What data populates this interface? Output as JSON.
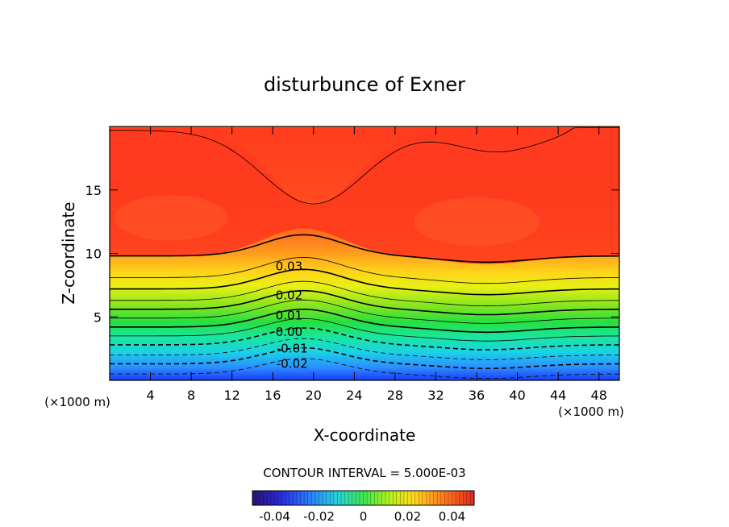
{
  "chart_data": {
    "type": "heatmap",
    "subtype": "filled-contour",
    "title": "disturbunce of Exner",
    "xlabel": "X-coordinate",
    "ylabel": "Z-coordinate",
    "x_unit_left": "(×1000 m)",
    "x_unit_right": "(×1000 m)",
    "xlim": [
      0,
      50
    ],
    "ylim": [
      0,
      20
    ],
    "x_ticks": [
      4,
      8,
      12,
      16,
      20,
      24,
      28,
      32,
      36,
      40,
      44,
      48
    ],
    "x_tick_labels": [
      "4",
      "8",
      "12",
      "16",
      "20",
      "24",
      "28",
      "32",
      "36",
      "40",
      "44",
      "48"
    ],
    "y_ticks": [
      5,
      10,
      15
    ],
    "y_tick_labels": [
      "5",
      "10",
      "15"
    ],
    "contour_interval_text": "CONTOUR INTERVAL = 5.000E-03",
    "contour_labels": [
      {
        "text": "0.03",
        "x": 17.6,
        "z": 9.0
      },
      {
        "text": "0.02",
        "x": 17.6,
        "z": 6.7
      },
      {
        "text": "0.01",
        "x": 17.6,
        "z": 5.1
      },
      {
        "text": "0.00",
        "x": 17.6,
        "z": 3.8
      },
      {
        "text": "-0.01",
        "x": 17.9,
        "z": 2.5
      },
      {
        "text": "-0.02",
        "x": 17.9,
        "z": 1.3
      }
    ],
    "contour_levels_z_at_x0": [
      0.5,
      1.3,
      2.0,
      2.8,
      3.5,
      4.2,
      4.9,
      5.6,
      6.3,
      7.2,
      8.1,
      9.8
    ],
    "colorbar": {
      "min": -0.05,
      "max": 0.05,
      "tick_labels": [
        "-0.04",
        "-0.02",
        "0",
        "0.02",
        "0.04"
      ],
      "tick_values": [
        -0.04,
        -0.02,
        0,
        0.02,
        0.04
      ]
    }
  }
}
